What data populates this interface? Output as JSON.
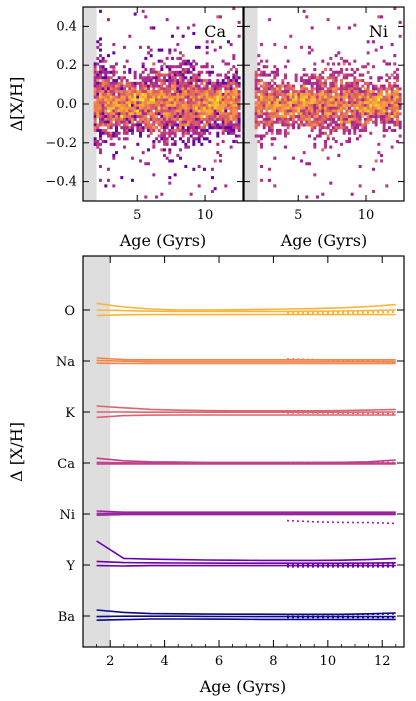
{
  "chart_data": [
    {
      "type": "heatmap",
      "panel": "Ca",
      "title": "Ca",
      "xlabel": "Age (Gyrs)",
      "ylabel": "Δ[X/H]",
      "xlim": [
        1.0,
        12.8
      ],
      "ylim": [
        -0.5,
        0.5
      ],
      "xticks": [
        5,
        10
      ],
      "yticks": [
        -0.4,
        -0.2,
        0.0,
        0.2,
        0.4
      ],
      "shaded_region": [
        1.0,
        2.0
      ],
      "colormap": "plasma",
      "density_center_y": 0.0,
      "density_spread_y": 0.08
    },
    {
      "type": "heatmap",
      "panel": "Ni",
      "title": "Ni",
      "xlabel": "Age (Gyrs)",
      "ylabel": "",
      "xlim": [
        1.0,
        12.8
      ],
      "ylim": [
        -0.5,
        0.5
      ],
      "xticks": [
        5,
        10
      ],
      "shaded_region": [
        1.0,
        2.0
      ],
      "colormap": "plasma",
      "density_center_y": 0.0,
      "density_spread_y": 0.07
    },
    {
      "type": "line",
      "xlabel": "Age (Gyrs)",
      "ylabel": "Δ [X/H]",
      "xlim": [
        1.0,
        12.8
      ],
      "xticks": [
        2,
        4,
        6,
        8,
        10,
        12
      ],
      "ytick_labels": [
        "O",
        "Na",
        "K",
        "Ca",
        "Ni",
        "Y",
        "Ba"
      ],
      "shaded_region": [
        1.0,
        2.0
      ],
      "groups": [
        {
          "element": "O",
          "color": "#f9b53a",
          "x": [
            1.5,
            2.5,
            3.5,
            4.5,
            5.5,
            6.5,
            7.5,
            8.5,
            9.5,
            10.5,
            11.5,
            12.5
          ],
          "solid": [
            [
              0.55,
              0.25,
              0.08,
              0.0,
              0.0,
              0.02,
              0.05,
              0.08,
              0.12,
              0.18,
              0.28,
              0.45
            ],
            [
              0.0,
              -0.05,
              -0.1,
              -0.12,
              -0.12,
              -0.12,
              -0.12,
              -0.12,
              -0.1,
              -0.08,
              -0.05,
              0.0
            ],
            [
              -0.45,
              -0.4,
              -0.38,
              -0.38,
              -0.38,
              -0.38,
              -0.38,
              -0.38,
              -0.38,
              -0.38,
              -0.38,
              -0.38
            ]
          ],
          "dotted_x": [
            8.5,
            9.5,
            10.5,
            11.5,
            12.5
          ],
          "dotted": [
            [
              -0.22,
              -0.2,
              -0.18,
              -0.15,
              -0.12
            ],
            [
              -0.3,
              -0.28,
              -0.26,
              -0.22,
              -0.18
            ]
          ]
        },
        {
          "element": "Na",
          "color": "#f2844b",
          "x": [
            1.5,
            2.5,
            3.5,
            4.5,
            5.5,
            6.5,
            7.5,
            8.5,
            9.5,
            10.5,
            11.5,
            12.5
          ],
          "solid": [
            [
              0.25,
              0.12,
              0.1,
              0.1,
              0.1,
              0.1,
              0.1,
              0.1,
              0.1,
              0.1,
              0.1,
              0.1
            ],
            [
              0.05,
              -0.02,
              -0.05,
              -0.05,
              -0.05,
              -0.05,
              -0.05,
              -0.05,
              -0.05,
              -0.05,
              -0.05,
              -0.05
            ],
            [
              -0.18,
              -0.2,
              -0.2,
              -0.2,
              -0.2,
              -0.2,
              -0.2,
              -0.2,
              -0.2,
              -0.2,
              -0.2,
              -0.2
            ]
          ],
          "dotted_x": [
            8.5,
            9.5,
            10.5,
            11.5,
            12.5
          ],
          "dotted": [
            [
              0.18,
              0.12,
              0.05,
              -0.02,
              -0.08
            ]
          ]
        },
        {
          "element": "K",
          "color": "#db6470",
          "x": [
            1.5,
            2.5,
            3.5,
            4.5,
            5.5,
            6.5,
            7.5,
            8.5,
            9.5,
            10.5,
            11.5,
            12.5
          ],
          "solid": [
            [
              0.5,
              0.35,
              0.22,
              0.15,
              0.12,
              0.1,
              0.1,
              0.1,
              0.1,
              0.12,
              0.16,
              0.22
            ],
            [
              0.0,
              0.0,
              -0.02,
              -0.02,
              -0.02,
              -0.02,
              -0.02,
              -0.02,
              -0.02,
              -0.02,
              -0.01,
              0.0
            ],
            [
              -0.45,
              -0.3,
              -0.26,
              -0.25,
              -0.25,
              -0.25,
              -0.25,
              -0.25,
              -0.25,
              -0.25,
              -0.25,
              -0.25
            ]
          ],
          "dotted_x": [
            8.5,
            9.5,
            10.5,
            11.5,
            12.5
          ],
          "dotted": [
            [
              -0.08,
              -0.08,
              -0.1,
              -0.12,
              -0.14
            ]
          ]
        },
        {
          "element": "Ca",
          "color": "#c0408a",
          "x": [
            1.5,
            2.5,
            3.5,
            4.5,
            5.5,
            6.5,
            7.5,
            8.5,
            9.5,
            10.5,
            11.5,
            12.5
          ],
          "solid": [
            [
              0.4,
              0.18,
              0.1,
              0.08,
              0.05,
              0.05,
              0.05,
              0.05,
              0.05,
              0.06,
              0.1,
              0.25
            ],
            [
              0.05,
              0.02,
              0.0,
              0.0,
              0.0,
              0.0,
              0.0,
              0.0,
              0.0,
              0.0,
              0.0,
              0.0
            ],
            [
              -0.08,
              -0.08,
              -0.08,
              -0.08,
              -0.08,
              -0.08,
              -0.08,
              -0.08,
              -0.08,
              -0.08,
              -0.08,
              -0.08
            ]
          ],
          "dotted_x": [
            8.5,
            9.5,
            10.5,
            11.5,
            12.5
          ],
          "dotted": [
            [
              0.05,
              0.05,
              0.05,
              0.05,
              0.05
            ],
            [
              -0.02,
              -0.02,
              -0.02,
              -0.02,
              -0.02
            ]
          ]
        },
        {
          "element": "Ni",
          "color": "#9c23a0",
          "x": [
            1.5,
            2.5,
            3.5,
            4.5,
            5.5,
            6.5,
            7.5,
            8.5,
            9.5,
            10.5,
            11.5,
            12.5
          ],
          "solid": [
            [
              0.25,
              0.15,
              0.15,
              0.15,
              0.15,
              0.15,
              0.15,
              0.15,
              0.15,
              0.15,
              0.15,
              0.15
            ],
            [
              0.05,
              0.05,
              0.05,
              0.05,
              0.05,
              0.05,
              0.05,
              0.05,
              0.05,
              0.05,
              0.05,
              0.05
            ],
            [
              -0.1,
              -0.05,
              -0.05,
              -0.05,
              -0.05,
              -0.05,
              -0.05,
              -0.05,
              -0.05,
              -0.05,
              -0.05,
              -0.05
            ]
          ],
          "dotted_x": [
            8.5,
            9.5,
            10.5,
            11.5,
            12.5
          ],
          "dotted": [
            [
              -0.55,
              -0.65,
              -0.7,
              -0.72,
              -0.78
            ]
          ]
        },
        {
          "element": "Y",
          "color": "#6a00a8",
          "x": [
            1.5,
            2.5,
            3.5,
            4.5,
            5.5,
            6.5,
            7.5,
            8.5,
            9.5,
            10.5,
            11.5,
            12.5
          ],
          "solid": [
            [
              2.0,
              0.55,
              0.48,
              0.45,
              0.42,
              0.4,
              0.38,
              0.38,
              0.38,
              0.4,
              0.45,
              0.55
            ],
            [
              0.3,
              0.2,
              0.18,
              0.17,
              0.16,
              0.15,
              0.15,
              0.15,
              0.15,
              0.15,
              0.16,
              0.18
            ],
            [
              -0.05,
              -0.08,
              -0.05,
              -0.05,
              -0.05,
              -0.05,
              -0.05,
              -0.05,
              -0.05,
              -0.05,
              -0.05,
              -0.05
            ]
          ],
          "dotted_x": [
            8.5,
            9.5,
            10.5,
            11.5,
            12.5
          ],
          "dotted": [
            [
              0.05,
              0.05,
              0.06,
              0.08,
              0.1
            ],
            [
              -0.15,
              -0.15,
              -0.15,
              -0.15,
              -0.15
            ]
          ]
        },
        {
          "element": "Ba",
          "color": "#0d0887",
          "x": [
            1.5,
            2.5,
            3.5,
            4.5,
            5.5,
            6.5,
            7.5,
            8.5,
            9.5,
            10.5,
            11.5,
            12.5
          ],
          "solid": [
            [
              0.5,
              0.3,
              0.2,
              0.18,
              0.16,
              0.15,
              0.15,
              0.14,
              0.14,
              0.14,
              0.18,
              0.25
            ],
            [
              -0.05,
              -0.02,
              -0.02,
              -0.02,
              -0.03,
              -0.04,
              -0.05,
              -0.05,
              -0.05,
              -0.05,
              -0.05,
              -0.05
            ],
            [
              -0.35,
              -0.3,
              -0.25,
              -0.25,
              -0.26,
              -0.27,
              -0.28,
              -0.28,
              -0.28,
              -0.28,
              -0.28,
              -0.28
            ]
          ],
          "dotted_x": [
            8.5,
            9.5,
            10.5,
            11.5,
            12.5
          ],
          "dotted": [
            [
              0.12,
              0.12,
              0.12,
              0.14,
              0.18
            ],
            [
              -0.12,
              -0.12,
              -0.12,
              -0.12,
              -0.12
            ]
          ]
        }
      ]
    }
  ]
}
